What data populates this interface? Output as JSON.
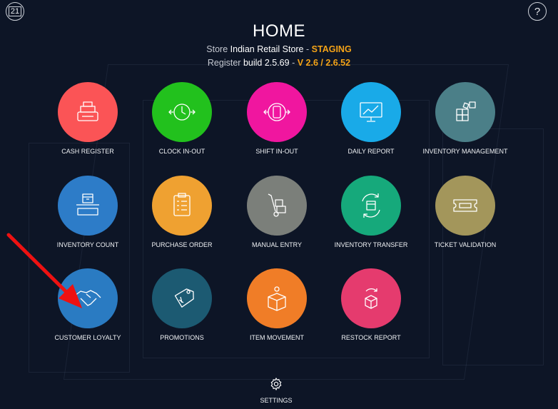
{
  "header": {
    "calendar_day": "21",
    "help_label": "?",
    "title": "HOME",
    "store_prefix": "Store",
    "store_name": "Indian Retail Store",
    "separator": "-",
    "environment": "STAGING",
    "register_prefix": "Register",
    "build": "build 2.5.69",
    "version": "V 2.6 / 2.6.52"
  },
  "tiles": [
    {
      "label": "CASH REGISTER",
      "color": "#fb5456",
      "icon": "cash-register-icon"
    },
    {
      "label": "CLOCK IN-OUT",
      "color": "#22c11d",
      "icon": "clock-icon"
    },
    {
      "label": "SHIFT IN-OUT",
      "color": "#f0169f",
      "icon": "shift-icon"
    },
    {
      "label": "DAILY REPORT",
      "color": "#19aae8",
      "icon": "chart-monitor-icon"
    },
    {
      "label": "INVENTORY MANAGEMENT",
      "color": "#4b7f88",
      "icon": "boxes-icon"
    },
    {
      "label": "INVENTORY COUNT",
      "color": "#2d7cc8",
      "icon": "box-counter-icon"
    },
    {
      "label": "PURCHASE ORDER",
      "color": "#efa131",
      "icon": "clipboard-icon"
    },
    {
      "label": "MANUAL ENTRY",
      "color": "#7b7f7a",
      "icon": "hand-truck-icon"
    },
    {
      "label": "INVENTORY TRANSFER",
      "color": "#16a97b",
      "icon": "box-transfer-icon"
    },
    {
      "label": "TICKET VALIDATION",
      "color": "#a3965b",
      "icon": "ticket-icon"
    },
    {
      "label": "CUSTOMER LOYALTY",
      "color": "#2a7bc2",
      "icon": "handshake-icon"
    },
    {
      "label": "PROMOTIONS",
      "color": "#1c5a72",
      "icon": "price-tag-icon"
    },
    {
      "label": "ITEM MOVEMENT",
      "color": "#f07d27",
      "icon": "box-gear-icon"
    },
    {
      "label": "RESTOCK REPORT",
      "color": "#e53b6e",
      "icon": "box-refresh-icon"
    }
  ],
  "settings": {
    "label": "SETTINGS",
    "icon": "gear-icon"
  },
  "annotation": {
    "color": "#ee1111",
    "icon": "red-arrow"
  }
}
